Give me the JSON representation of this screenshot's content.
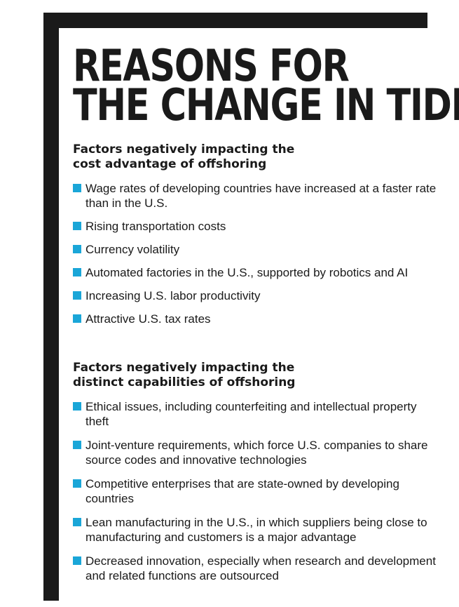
{
  "title": {
    "line1": "REASONS FOR",
    "line2": "THE CHANGE IN TIDE"
  },
  "accent_color": "#1aa6d8",
  "sections": [
    {
      "heading_line1": "Factors negatively impacting the",
      "heading_line2": "cost advantage of offshoring",
      "items": [
        "Wage rates of developing countries have increased at a faster rate than in the U.S.",
        "Rising transportation costs",
        "Currency volatility",
        "Automated factories in the U.S., supported by robotics and AI",
        "Increasing U.S. labor productivity",
        "Attractive U.S. tax rates"
      ]
    },
    {
      "heading_line1": "Factors negatively impacting the",
      "heading_line2": "distinct capabilities of offshoring",
      "items": [
        "Ethical issues, including counterfeiting and intellectual property theft",
        "Joint-venture requirements, which force U.S. companies to share source codes and innovative technologies",
        "Competitive enterprises that are state-owned by developing countries",
        "Lean manufacturing in the U.S., in which suppliers being close to manufacturing and customers is a major advantage",
        "Decreased innovation, especially when research and development and related functions are outsourced"
      ]
    }
  ]
}
